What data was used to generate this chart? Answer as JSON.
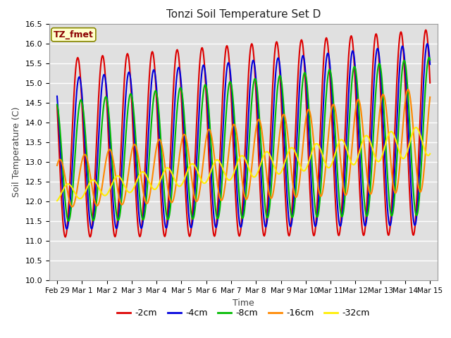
{
  "title": "Tonzi Soil Temperature Set D",
  "xlabel": "Time",
  "ylabel": "Soil Temperature (C)",
  "ylim": [
    10.0,
    16.5
  ],
  "yticks": [
    10.0,
    10.5,
    11.0,
    11.5,
    12.0,
    12.5,
    13.0,
    13.5,
    14.0,
    14.5,
    15.0,
    15.5,
    16.0,
    16.5
  ],
  "xtick_labels": [
    "Feb 29",
    "Mar 1",
    "Mar 2",
    "Mar 3",
    "Mar 4",
    "Mar 5",
    "Mar 6",
    "Mar 7",
    "Mar 8",
    "Mar 9",
    "Mar 10",
    "Mar 11",
    "Mar 12",
    "Mar 13",
    "Mar 14",
    "Mar 15"
  ],
  "series": {
    "-2cm": {
      "color": "#dd0000",
      "lw": 1.5
    },
    "-4cm": {
      "color": "#0000dd",
      "lw": 1.5
    },
    "-8cm": {
      "color": "#00bb00",
      "lw": 1.5
    },
    "-16cm": {
      "color": "#ff8800",
      "lw": 1.5
    },
    "-32cm": {
      "color": "#ffee00",
      "lw": 1.5
    }
  },
  "legend_label": "TZ_fmet",
  "plot_bg": "#e0e0e0",
  "grid_color": "#ffffff",
  "fig_bg": "#ffffff"
}
